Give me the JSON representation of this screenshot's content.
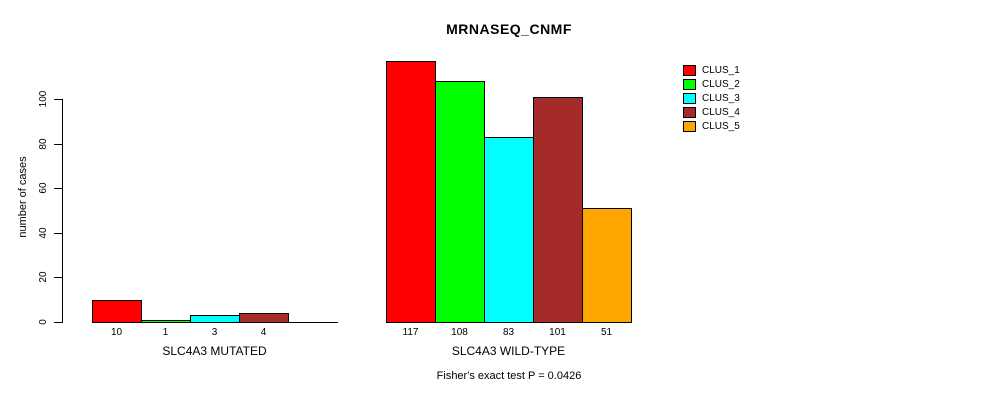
{
  "title": "MRNASEQ_CNMF",
  "footer": "Fisher's exact test P = 0.0426",
  "chart_data": {
    "type": "bar",
    "title": "MRNASEQ_CNMF",
    "ylabel": "number of cases",
    "xlabel": "",
    "ylim": [
      0,
      117
    ],
    "yticks": [
      0,
      20,
      40,
      60,
      80,
      100
    ],
    "grid": false,
    "legend_position": "right",
    "legend": [
      {
        "label": "CLUS_1",
        "color": "#FF0000"
      },
      {
        "label": "CLUS_2",
        "color": "#00FF00"
      },
      {
        "label": "CLUS_3",
        "color": "#00FFFF"
      },
      {
        "label": "CLUS_4",
        "color": "#A52A2A"
      },
      {
        "label": "CLUS_5",
        "color": "#FFA500"
      }
    ],
    "colors": [
      "#FF0000",
      "#00FF00",
      "#00FFFF",
      "#A52A2A",
      "#FFA500"
    ],
    "groups": [
      {
        "label": "SLC4A3 MUTATED",
        "series": [
          "CLUS_1",
          "CLUS_2",
          "CLUS_3",
          "CLUS_4",
          "CLUS_5"
        ],
        "values": [
          10,
          1,
          3,
          4,
          0
        ],
        "bar_labels": [
          "10",
          "1",
          "3",
          "4",
          ""
        ]
      },
      {
        "label": "SLC4A3 WILD-TYPE",
        "series": [
          "CLUS_1",
          "CLUS_2",
          "CLUS_3",
          "CLUS_4",
          "CLUS_5"
        ],
        "values": [
          117,
          108,
          83,
          101,
          51
        ],
        "bar_labels": [
          "117",
          "108",
          "83",
          "101",
          "51"
        ]
      }
    ],
    "annotation": "Fisher's exact test P = 0.0426"
  }
}
